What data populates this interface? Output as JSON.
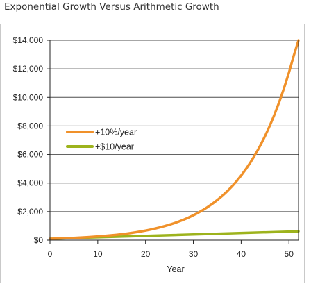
{
  "title": "Exponential Growth Versus Arithmetic Growth",
  "chart_data": {
    "type": "line",
    "title": "",
    "xlabel": "Year",
    "ylabel": "",
    "xlim": [
      0,
      52
    ],
    "ylim": [
      0,
      14000
    ],
    "x_ticks": [
      0,
      10,
      20,
      30,
      40,
      50
    ],
    "x_tick_labels": [
      "0",
      "10",
      "20",
      "30",
      "40",
      "50"
    ],
    "y_ticks": [
      0,
      2000,
      4000,
      6000,
      8000,
      10000,
      12000,
      14000
    ],
    "y_tick_labels": [
      "$0",
      "$2,000",
      "$4,000",
      "$6,000",
      "$8,000",
      "$10,000",
      "$12,000",
      "$14,000"
    ],
    "grid": "horizontal",
    "legend_position": "left",
    "colors": {
      "exponential": "#F0912A",
      "arithmetic": "#9DB31D",
      "grid": "#4d4d4d",
      "axis": "#222222"
    },
    "series": [
      {
        "name": "+10%/year",
        "x": [
          0,
          1,
          2,
          3,
          4,
          5,
          6,
          7,
          8,
          9,
          10,
          11,
          12,
          13,
          14,
          15,
          16,
          17,
          18,
          19,
          20,
          21,
          22,
          23,
          24,
          25,
          26,
          27,
          28,
          29,
          30,
          31,
          32,
          33,
          34,
          35,
          36,
          37,
          38,
          39,
          40,
          41,
          42,
          43,
          44,
          45,
          46,
          47,
          48,
          49,
          50,
          51,
          52
        ],
        "values": [
          100,
          110,
          121,
          133,
          146,
          161,
          177,
          195,
          214,
          236,
          259,
          285,
          314,
          345,
          380,
          418,
          459,
          505,
          556,
          612,
          673,
          740,
          814,
          895,
          985,
          1083,
          1192,
          1311,
          1442,
          1586,
          1745,
          1919,
          2111,
          2323,
          2555,
          2810,
          3091,
          3400,
          3740,
          4114,
          4526,
          4978,
          5476,
          6024,
          6626,
          7289,
          8018,
          8820,
          9702,
          10672,
          11739,
          12913,
          14204
        ]
      },
      {
        "name": "+$10/year",
        "x": [
          0,
          52
        ],
        "values": [
          100,
          620
        ]
      }
    ]
  }
}
